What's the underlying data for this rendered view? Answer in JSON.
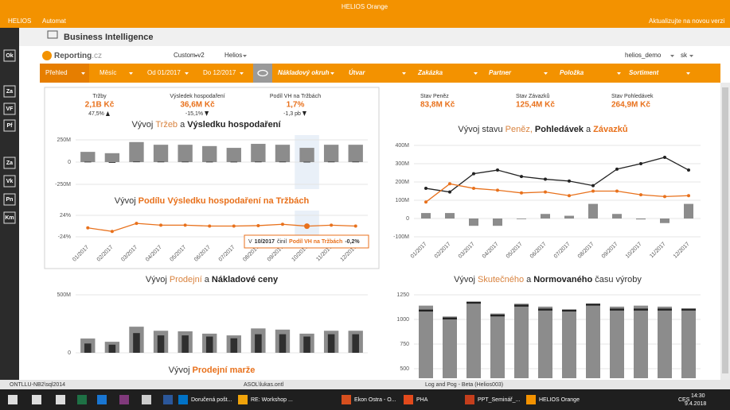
{
  "window": {
    "title": "HELIOS Orange",
    "menu": [
      "HELIOS",
      "Automat"
    ],
    "update": "Aktualizujte na novou verzi"
  },
  "header": {
    "title": "Business Intelligence"
  },
  "toolbar": {
    "logo": "Reporting",
    "logo_suffix": ".cz",
    "items": [
      "Custom-v2",
      "Helios"
    ],
    "user": "helios_demo",
    "lang": "sk"
  },
  "filters": [
    "Přehled",
    "Měsíc",
    "Od 01/2017",
    "Do 12/2017",
    "Nákladový okruh",
    "Útvar",
    "Zakázka",
    "Partner",
    "Položka",
    "Sortiment"
  ],
  "sidebar": [
    "Ok",
    "Za",
    "VF",
    "Pf",
    "Za",
    "Vk",
    "Pn",
    "Km"
  ],
  "kpis": [
    {
      "label": "Tržby",
      "value": "2,1B Kč",
      "change": "47,5%",
      "trend": "up"
    },
    {
      "label": "Výsledek hospodaření",
      "value": "36,6M Kč",
      "change": "-15,1%",
      "trend": "down"
    },
    {
      "label": "Podíl VH na Tržbách",
      "value": "1,7%",
      "change": "-1,3 pb",
      "trend": "down"
    }
  ],
  "balances": [
    {
      "label": "Stav Peněz",
      "value": "83,8M Kč"
    },
    {
      "label": "Stav Závazků",
      "value": "125,4M Kč"
    },
    {
      "label": "Stav Pohledávek",
      "value": "264,9M Kč"
    }
  ],
  "chart_data": [
    {
      "type": "bar",
      "title_parts": [
        {
          "text": "Vývoj",
          "color": "#333"
        },
        {
          "text": "Tržeb",
          "color": "#d9833f"
        },
        {
          "text": "a",
          "color": "#333"
        },
        {
          "text": "Výsledku hospodaření",
          "color": "#222",
          "bold": true
        }
      ],
      "ylim": [
        -250,
        250
      ],
      "yticks": [
        {
          "value": 250,
          "label": "250M"
        },
        0,
        {
          "value": -250,
          "label": "-250M"
        }
      ],
      "grid": true,
      "highlight": 9,
      "series": [
        {
          "kind": "bar",
          "color": "#8c8c8c",
          "values": [
            115,
            100,
            225,
            195,
            195,
            180,
            160,
            205,
            195,
            160,
            195,
            195
          ]
        },
        {
          "kind": "inner_bar",
          "color": "#2f2f2f",
          "values": [
            4,
            -8,
            6,
            5,
            5,
            4,
            4,
            5,
            5,
            3,
            5,
            5
          ]
        }
      ]
    },
    {
      "type": "line",
      "title_parts": [
        {
          "text": "Vývoj",
          "color": "#333"
        },
        {
          "text": "Podílu Výsledku hospodaření na Tržbách",
          "color": "#e8711c",
          "bold": true
        }
      ],
      "ylim": [
        -24,
        24
      ],
      "yticks": [
        {
          "value": 24,
          "label": "24%"
        },
        {
          "value": -24,
          "label": "-24%"
        }
      ],
      "grid": true,
      "highlight": 9,
      "categories": [
        "01/2017",
        "02/2017",
        "03/2017",
        "04/2017",
        "05/2017",
        "06/2017",
        "07/2017",
        "08/2017",
        "09/2017",
        "10/2017",
        "11/2017",
        "12/2017"
      ],
      "series": [
        {
          "kind": "line",
          "color": "#e8711c",
          "values": [
            -4,
            -12,
            6,
            2,
            2,
            0,
            0,
            1,
            4,
            -0.2,
            2,
            0
          ]
        }
      ],
      "tooltip": {
        "prefix": "V",
        "period": "10/2017",
        "verb": "činil",
        "metric": "Podíl VH na Tržbách",
        "value": "-0,2%"
      }
    },
    {
      "type": "combo",
      "title_parts": [
        {
          "text": "Vývoj stavu",
          "color": "#333"
        },
        {
          "text": "Peněz,",
          "color": "#d9833f"
        },
        {
          "text": "Pohledávek",
          "color": "#222",
          "bold": true
        },
        {
          "text": "a",
          "color": "#333"
        },
        {
          "text": "Závazků",
          "color": "#e8711c",
          "bold": true
        }
      ],
      "ylim": [
        -100,
        400
      ],
      "yticks": [
        {
          "value": 400,
          "label": "400M"
        },
        {
          "value": 300,
          "label": "300M"
        },
        {
          "value": 200,
          "label": "200M"
        },
        {
          "value": 100,
          "label": "100M"
        },
        0,
        {
          "value": -100,
          "label": "-100M"
        }
      ],
      "grid": true,
      "categories": [
        "01/2017",
        "02/2017",
        "03/2017",
        "04/2017",
        "05/2017",
        "06/2017",
        "07/2017",
        "08/2017",
        "09/2017",
        "10/2017",
        "11/2017",
        "12/2017"
      ],
      "series": [
        {
          "kind": "bar",
          "color": "#8c8c8c",
          "values": [
            30,
            30,
            -40,
            -40,
            0,
            25,
            15,
            80,
            25,
            -5,
            -25,
            80
          ]
        },
        {
          "kind": "line",
          "color": "#222",
          "values": [
            165,
            145,
            245,
            265,
            230,
            215,
            205,
            180,
            270,
            300,
            335,
            265
          ]
        },
        {
          "kind": "line",
          "color": "#e8711c",
          "values": [
            90,
            190,
            165,
            155,
            140,
            145,
            125,
            150,
            150,
            130,
            120,
            125
          ]
        }
      ]
    },
    {
      "type": "bar",
      "title_parts": [
        {
          "text": "Vývoj",
          "color": "#333"
        },
        {
          "text": "Prodejní",
          "color": "#d9833f"
        },
        {
          "text": "a",
          "color": "#333"
        },
        {
          "text": "Nákladové ceny",
          "color": "#222",
          "bold": true
        }
      ],
      "ylim": [
        0,
        500
      ],
      "yticks": [
        {
          "value": 500,
          "label": "500M"
        },
        0
      ],
      "grid": true,
      "series": [
        {
          "kind": "bar",
          "color": "#8c8c8c",
          "values": [
            123,
            95,
            225,
            190,
            185,
            165,
            150,
            210,
            200,
            165,
            190,
            190
          ]
        },
        {
          "kind": "inner_bar",
          "color": "#2f2f2f",
          "values": [
            80,
            70,
            170,
            150,
            150,
            140,
            125,
            160,
            160,
            140,
            160,
            160
          ]
        }
      ]
    },
    {
      "type": "bar",
      "title_parts": [
        {
          "text": "Vývoj",
          "color": "#333"
        },
        {
          "text": "Prodejní marže",
          "color": "#e8711c",
          "bold": true
        }
      ]
    },
    {
      "type": "bar",
      "title_parts": [
        {
          "text": "Vývoj",
          "color": "#333"
        },
        {
          "text": "Skutečného",
          "color": "#d9833f"
        },
        {
          "text": "a",
          "color": "#333"
        },
        {
          "text": "Normovaného",
          "color": "#222",
          "bold": true
        },
        {
          "text": "času výroby",
          "color": "#333"
        }
      ],
      "ylim": [
        0,
        1250
      ],
      "yticks": [
        1250,
        1000,
        750,
        500
      ],
      "grid": true,
      "series": [
        {
          "kind": "bar",
          "color": "#8c8c8c",
          "values": [
            1140,
            1030,
            1180,
            1060,
            1160,
            1130,
            1100,
            1160,
            1130,
            1140,
            1130,
            1110
          ]
        },
        {
          "kind": "marker",
          "color": "#222",
          "values": [
            1090,
            1010,
            1170,
            1040,
            1140,
            1100,
            1090,
            1150,
            1100,
            1100,
            1100,
            1100
          ]
        }
      ]
    }
  ],
  "status": [
    "ONTLLU-NB2\\sql2014",
    "ASOL\\lukas.ontl",
    "Log and Pog - Beta (Helios003)"
  ],
  "taskbar": {
    "apps": [
      "Doručená pošt...",
      "RE: Workshop ...",
      "Ekon Ostra - O...",
      "PHA",
      "PPT_Seminář_...",
      "HELIOS Orange"
    ],
    "lang": "CES",
    "time": "14:30",
    "date": "9.4.2018"
  }
}
